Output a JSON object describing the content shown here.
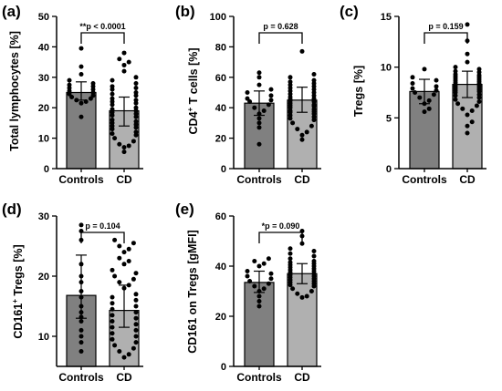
{
  "chart_data": [
    {
      "type": "bar",
      "panel": "(a)",
      "ylabel": "Total lymphocytes [%]",
      "ylim": [
        0,
        50
      ],
      "yticks": [
        0,
        10,
        20,
        30,
        40,
        50
      ],
      "categories": [
        "Controls",
        "CD"
      ],
      "bar_colors": [
        "#808080",
        "#b0b0b0"
      ],
      "annotation": "**p < 0.0001",
      "values": [
        25.0,
        19.0
      ],
      "error": [
        [
          22.5,
          28.5
        ],
        [
          14.0,
          23.5
        ]
      ],
      "points": [
        [
          39.5,
          33.5,
          31,
          29,
          28,
          27.5,
          27,
          26.5,
          26,
          25.5,
          25,
          24.5,
          24,
          23.5,
          23,
          22.5,
          22,
          21.5,
          17
        ],
        [
          38,
          36,
          35,
          34,
          32,
          30,
          29,
          28,
          27,
          26.5,
          26,
          25,
          24.5,
          24,
          23,
          22.5,
          22,
          21.5,
          21,
          20,
          19.5,
          19,
          18.5,
          18,
          17.5,
          17,
          16,
          15.5,
          15,
          14.5,
          14,
          13.5,
          13,
          12,
          11.5,
          11,
          10,
          9,
          8,
          7.5,
          7,
          5.5
        ]
      ]
    },
    {
      "type": "bar",
      "panel": "(b)",
      "ylabel": "CD4+ T cells [%]",
      "ylabel_parts": [
        "CD4",
        "+",
        " T cells [%]"
      ],
      "ylim": [
        0,
        100
      ],
      "yticks": [
        0,
        20,
        40,
        60,
        80,
        100
      ],
      "categories": [
        "Controls",
        "CD"
      ],
      "bar_colors": [
        "#808080",
        "#b0b0b0"
      ],
      "annotation": "p = 0.628",
      "values": [
        43.0,
        45.0
      ],
      "error": [
        [
          35.0,
          51.0
        ],
        [
          37.0,
          53.5
        ]
      ],
      "points": [
        [
          63,
          60,
          55,
          52,
          50,
          48,
          46,
          45,
          44,
          42,
          40,
          38,
          36,
          33,
          30,
          27,
          16
        ],
        [
          77,
          62,
          60,
          58,
          57,
          56,
          55,
          54,
          53,
          52,
          51,
          50,
          49,
          48,
          47,
          46,
          45.5,
          45,
          44.5,
          44,
          43,
          42,
          41.5,
          41,
          40,
          39,
          38,
          37.5,
          37,
          36,
          35,
          34,
          33,
          32,
          30,
          28,
          26,
          24,
          22,
          19
        ]
      ]
    },
    {
      "type": "bar",
      "panel": "(c)",
      "ylabel": "Tregs [%]",
      "ylim": [
        0,
        15
      ],
      "yticks": [
        0,
        5,
        10,
        15
      ],
      "categories": [
        "Controls",
        "CD"
      ],
      "bar_colors": [
        "#808080",
        "#b0b0b0"
      ],
      "annotation": "p = 0.159",
      "values": [
        7.6,
        8.3
      ],
      "error": [
        [
          6.4,
          8.8
        ],
        [
          7.0,
          9.6
        ]
      ],
      "points": [
        [
          9.8,
          9.0,
          8.7,
          8.4,
          8.1,
          7.9,
          7.7,
          7.5,
          7.3,
          7.0,
          6.7,
          6.4,
          5.9,
          5.6
        ],
        [
          14.2,
          12.6,
          11.3,
          10.5,
          10.0,
          9.8,
          9.6,
          9.5,
          9.3,
          9.2,
          9.1,
          9.0,
          8.9,
          8.8,
          8.7,
          8.6,
          8.5,
          8.4,
          8.3,
          8.2,
          8.1,
          8.0,
          7.9,
          7.8,
          7.7,
          7.6,
          7.5,
          7.3,
          7.2,
          7.0,
          6.8,
          6.6,
          6.4,
          6.2,
          5.9,
          5.7,
          5.3,
          4.6,
          4.2,
          3.5
        ]
      ]
    },
    {
      "type": "bar",
      "panel": "(d)",
      "ylabel": "CD161+ Tregs [%]",
      "ylabel_parts": [
        "CD161",
        "+",
        " Tregs [%]"
      ],
      "ylim": [
        5,
        30
      ],
      "yticks": [
        10,
        20,
        30
      ],
      "categories": [
        "Controls",
        "CD"
      ],
      "bar_colors": [
        "#808080",
        "#b0b0b0"
      ],
      "annotation": "p = 0.104",
      "values": [
        16.8,
        14.3
      ],
      "error": [
        [
          13.0,
          23.5
        ],
        [
          11.5,
          18.5
        ]
      ],
      "points": [
        [
          28.5,
          27.5,
          26,
          22,
          20,
          19,
          17.5,
          16.5,
          15,
          14,
          13.2,
          12.5,
          11,
          10,
          9,
          7.5
        ],
        [
          26,
          25.5,
          25,
          24.5,
          24,
          23,
          22.5,
          22,
          21,
          20.5,
          20,
          19.5,
          19,
          18.5,
          18,
          17,
          16.5,
          16,
          15.5,
          15,
          14.5,
          14,
          13.5,
          13,
          12.5,
          12,
          11.5,
          11,
          10.5,
          10,
          9.5,
          9,
          8.5,
          8,
          7.5,
          7,
          6.5
        ]
      ]
    },
    {
      "type": "bar",
      "panel": "(e)",
      "ylabel": "CD161 on Tregs [gMFI]",
      "ylim": [
        0,
        60
      ],
      "yticks": [
        0,
        20,
        40,
        60
      ],
      "categories": [
        "Controls",
        "CD"
      ],
      "bar_colors": [
        "#808080",
        "#b0b0b0"
      ],
      "annotation": "*p = 0.090",
      "values": [
        33.5,
        37.0
      ],
      "error": [
        [
          29.5,
          38.0
        ],
        [
          33.0,
          41.0
        ]
      ],
      "points": [
        [
          43,
          42,
          41,
          40,
          38,
          37,
          36,
          35,
          34,
          33,
          32,
          31,
          30,
          28,
          26,
          24
        ],
        [
          54,
          52,
          49,
          47,
          46,
          45,
          44,
          43,
          42,
          41.5,
          41,
          40.5,
          40,
          39.5,
          39,
          38.5,
          38,
          37.5,
          37,
          36.5,
          36,
          35.5,
          35,
          34.5,
          34,
          33.5,
          33,
          32.5,
          32,
          31,
          30,
          29,
          28,
          27.5
        ]
      ]
    }
  ]
}
